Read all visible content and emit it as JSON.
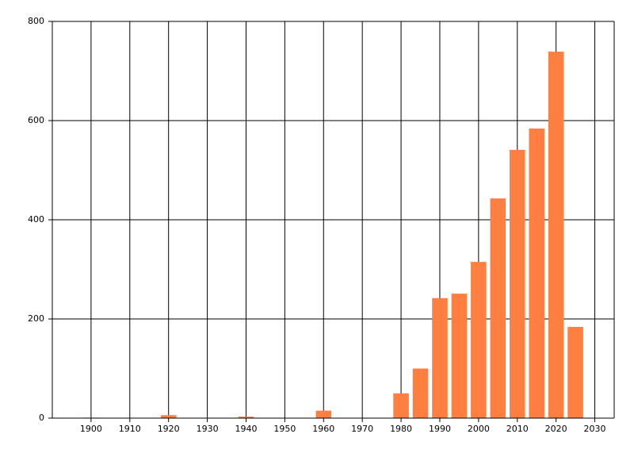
{
  "chart_data": {
    "type": "bar",
    "x": [
      1900,
      1920,
      1940,
      1960,
      1980,
      1985,
      1990,
      1995,
      2000,
      2005,
      2010,
      2015,
      2020,
      2025
    ],
    "values": [
      1,
      6,
      3,
      15,
      50,
      100,
      242,
      251,
      315,
      443,
      541,
      584,
      739,
      184
    ],
    "color": "#ff7f40",
    "xlim": [
      1890,
      2035
    ],
    "xticks": [
      1900,
      1910,
      1920,
      1930,
      1940,
      1950,
      1960,
      1970,
      1980,
      1990,
      2000,
      2010,
      2020,
      2030
    ],
    "ylim": [
      0,
      800
    ],
    "yticks": [
      0,
      200,
      400,
      600,
      800
    ],
    "grid": true
  }
}
